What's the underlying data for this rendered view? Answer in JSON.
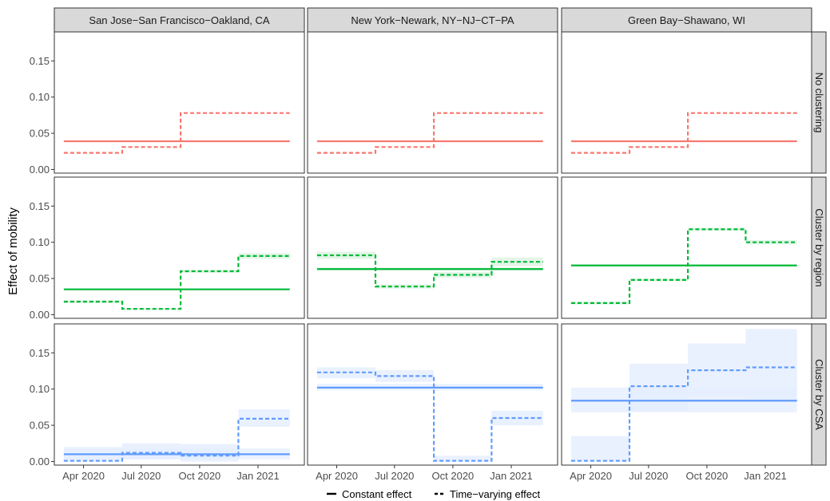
{
  "chart_data": {
    "type": "line",
    "ylabel": "Effect of mobility",
    "xlabel": "",
    "columns": [
      "San Jose−San Francisco−Oakland, CA",
      "New York−Newark, NY−NJ−CT−PA",
      "Green Bay−Shawano, WI"
    ],
    "rows": [
      "No clustering",
      "Cluster by region",
      "Cluster by CSA"
    ],
    "x_range": [
      "2020-02-15",
      "2021-03-15"
    ],
    "x_ticks": [
      {
        "date": "2020-04-01",
        "label": "Apr 2020"
      },
      {
        "date": "2020-07-01",
        "label": "Jul 2020"
      },
      {
        "date": "2020-10-01",
        "label": "Oct 2020"
      },
      {
        "date": "2021-01-01",
        "label": "Jan 2021"
      }
    ],
    "y_ticks": [
      {
        "value": 0.0,
        "label": "0.00"
      },
      {
        "value": 0.05,
        "label": "0.05"
      },
      {
        "value": 0.1,
        "label": "0.10"
      },
      {
        "value": 0.15,
        "label": "0.15"
      }
    ],
    "ylim": [
      -0.005,
      0.19
    ],
    "x_extent": [
      "2020-03-01",
      "2021-02-20"
    ],
    "period_breaks": [
      "2020-03-01",
      "2020-06-01",
      "2020-09-01",
      "2020-12-01",
      "2021-02-20"
    ],
    "legend": {
      "position": "bottom",
      "entries": [
        {
          "label": "Constant effect",
          "linetype": "solid"
        },
        {
          "label": "Time−varying effect",
          "linetype": "dashed"
        }
      ]
    },
    "row_colors": [
      "#f8766d",
      "#00ba38",
      "#619cff"
    ],
    "ribbon_colors": [
      "#fde2e0",
      "#dff3e4",
      "#e5eeff"
    ],
    "grid": false,
    "panels": [
      {
        "row": 0,
        "col": 0,
        "constant": 0.039,
        "constant_band": [
          0.038,
          0.04
        ],
        "varying": [
          0.023,
          0.031,
          0.078,
          0.078
        ],
        "varying_band": [
          [
            0.023,
            0.023
          ],
          [
            0.031,
            0.031
          ],
          [
            0.078,
            0.078
          ],
          [
            0.078,
            0.078
          ]
        ]
      },
      {
        "row": 0,
        "col": 1,
        "constant": 0.039,
        "constant_band": [
          0.038,
          0.04
        ],
        "varying": [
          0.023,
          0.031,
          0.078,
          0.078
        ],
        "varying_band": [
          [
            0.023,
            0.023
          ],
          [
            0.031,
            0.031
          ],
          [
            0.078,
            0.078
          ],
          [
            0.078,
            0.078
          ]
        ]
      },
      {
        "row": 0,
        "col": 2,
        "constant": 0.039,
        "constant_band": [
          0.038,
          0.04
        ],
        "varying": [
          0.023,
          0.031,
          0.078,
          0.078
        ],
        "varying_band": [
          [
            0.023,
            0.023
          ],
          [
            0.031,
            0.031
          ],
          [
            0.078,
            0.078
          ],
          [
            0.078,
            0.078
          ]
        ]
      },
      {
        "row": 1,
        "col": 0,
        "constant": 0.035,
        "constant_band": [
          0.034,
          0.036
        ],
        "varying": [
          0.018,
          0.008,
          0.06,
          0.081
        ],
        "varying_band": [
          [
            0.016,
            0.02
          ],
          [
            0.007,
            0.009
          ],
          [
            0.058,
            0.062
          ],
          [
            0.077,
            0.085
          ]
        ]
      },
      {
        "row": 1,
        "col": 1,
        "constant": 0.063,
        "constant_band": [
          0.061,
          0.065
        ],
        "varying": [
          0.082,
          0.039,
          0.055,
          0.073
        ],
        "varying_band": [
          [
            0.077,
            0.087
          ],
          [
            0.036,
            0.042
          ],
          [
            0.051,
            0.059
          ],
          [
            0.067,
            0.079
          ]
        ]
      },
      {
        "row": 1,
        "col": 2,
        "constant": 0.068,
        "constant_band": [
          0.067,
          0.069
        ],
        "varying": [
          0.016,
          0.048,
          0.118,
          0.1
        ],
        "varying_band": [
          [
            0.014,
            0.018
          ],
          [
            0.046,
            0.05
          ],
          [
            0.116,
            0.12
          ],
          [
            0.097,
            0.103
          ]
        ]
      },
      {
        "row": 2,
        "col": 0,
        "constant": 0.01,
        "constant_band": [
          0.003,
          0.018
        ],
        "varying": [
          0.001,
          0.012,
          0.008,
          0.059
        ],
        "varying_band": [
          [
            0.0,
            0.02
          ],
          [
            0.003,
            0.025
          ],
          [
            0.0,
            0.024
          ],
          [
            0.048,
            0.072
          ]
        ]
      },
      {
        "row": 2,
        "col": 1,
        "constant": 0.102,
        "constant_band": [
          0.098,
          0.107
        ],
        "varying": [
          0.123,
          0.118,
          0.001,
          0.06
        ],
        "varying_band": [
          [
            0.115,
            0.13
          ],
          [
            0.11,
            0.126
          ],
          [
            0.0,
            0.008
          ],
          [
            0.05,
            0.07
          ]
        ]
      },
      {
        "row": 2,
        "col": 2,
        "constant": 0.084,
        "constant_band": [
          0.068,
          0.102
        ],
        "varying": [
          0.001,
          0.104,
          0.126,
          0.13
        ],
        "varying_band": [
          [
            0.0,
            0.035
          ],
          [
            0.07,
            0.135
          ],
          [
            0.09,
            0.163
          ],
          [
            0.085,
            0.183
          ]
        ]
      }
    ]
  }
}
